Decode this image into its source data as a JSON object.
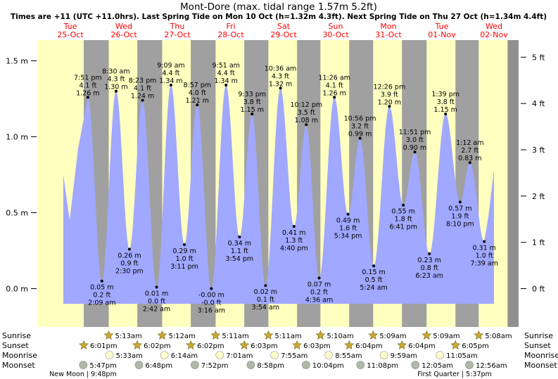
{
  "chart_data": {
    "type": "area",
    "title": "Mont-Dore (max. tidal range 1.57m 5.2ft)",
    "subtitle": "Times are +11 (UTC +11.0hrs). Last Spring Tide on Mon 10 Oct (h=1.32m 4.3ft). Next Spring Tide on Thu 27 Oct (h=1.34m 4.4ft)",
    "days": [
      {
        "dow": "Tue",
        "date": "25-Oct"
      },
      {
        "dow": "Wed",
        "date": "26-Oct"
      },
      {
        "dow": "Thu",
        "date": "27-Oct"
      },
      {
        "dow": "Fri",
        "date": "28-Oct"
      },
      {
        "dow": "Sat",
        "date": "29-Oct"
      },
      {
        "dow": "Sun",
        "date": "30-Oct"
      },
      {
        "dow": "Mon",
        "date": "31-Oct"
      },
      {
        "dow": "Tue",
        "date": "01-Nov"
      },
      {
        "dow": "Wed",
        "date": "02-Nov"
      }
    ],
    "y_axis_m": {
      "ylim": [
        -0.2,
        1.7
      ],
      "ticks": [
        0.0,
        0.5,
        1.0,
        1.5
      ],
      "labels": [
        "0.0 m",
        "0.5 m",
        "1.0 m",
        "1.5 m"
      ]
    },
    "y_axis_ft": {
      "ticks": [
        0,
        1,
        2,
        3,
        4,
        5
      ],
      "labels": [
        "0 ft",
        "1 ft",
        "2 ft",
        "3 ft",
        "4 ft",
        "5 ft"
      ]
    },
    "extremes": [
      {
        "type": "high",
        "day": 0,
        "time": "7:51 pm",
        "m": 1.26,
        "m_label": "1.26 m",
        "ft_label": "4.1 ft"
      },
      {
        "type": "low",
        "day": 1,
        "time": "2:09 am",
        "m": 0.05,
        "m_label": "0.05 m",
        "ft_label": "0.2 ft"
      },
      {
        "type": "high",
        "day": 1,
        "time": "8:30 am",
        "m": 1.3,
        "m_label": "1.30 m",
        "ft_label": "4.3 ft"
      },
      {
        "type": "low",
        "day": 1,
        "time": "2:30 pm",
        "m": 0.26,
        "m_label": "0.26 m",
        "ft_label": "0.9 ft"
      },
      {
        "type": "high",
        "day": 1,
        "time": "8:23 pm",
        "m": 1.24,
        "m_label": "1.24 m",
        "ft_label": "4.1 ft"
      },
      {
        "type": "low",
        "day": 2,
        "time": "2:42 am",
        "m": 0.01,
        "m_label": "0.01 m",
        "ft_label": "0.0 ft"
      },
      {
        "type": "high",
        "day": 2,
        "time": "9:09 am",
        "m": 1.34,
        "m_label": "1.34 m",
        "ft_label": "4.4 ft"
      },
      {
        "type": "low",
        "day": 2,
        "time": "3:11 pm",
        "m": 0.29,
        "m_label": "0.29 m",
        "ft_label": "1.0 ft"
      },
      {
        "type": "high",
        "day": 2,
        "time": "8:57 pm",
        "m": 1.21,
        "m_label": "1.21 m",
        "ft_label": "4.0 ft"
      },
      {
        "type": "low",
        "day": 3,
        "time": "3:16 am",
        "m": -0.0,
        "m_label": "-0.00 m",
        "ft_label": "-0.0 ft"
      },
      {
        "type": "high",
        "day": 3,
        "time": "9:51 am",
        "m": 1.34,
        "m_label": "1.34 m",
        "ft_label": "4.4 ft"
      },
      {
        "type": "low",
        "day": 3,
        "time": "3:54 pm",
        "m": 0.34,
        "m_label": "0.34 m",
        "ft_label": "1.1 ft"
      },
      {
        "type": "high",
        "day": 3,
        "time": "9:33 pm",
        "m": 1.15,
        "m_label": "1.15 m",
        "ft_label": "3.8 ft"
      },
      {
        "type": "low",
        "day": 4,
        "time": "3:54 am",
        "m": 0.02,
        "m_label": "0.02 m",
        "ft_label": "0.1 ft"
      },
      {
        "type": "high",
        "day": 4,
        "time": "10:36 am",
        "m": 1.32,
        "m_label": "1.32 m",
        "ft_label": "4.3 ft"
      },
      {
        "type": "low",
        "day": 4,
        "time": "4:40 pm",
        "m": 0.41,
        "m_label": "0.41 m",
        "ft_label": "1.3 ft"
      },
      {
        "type": "high",
        "day": 4,
        "time": "10:12 pm",
        "m": 1.08,
        "m_label": "1.08 m",
        "ft_label": "3.5 ft"
      },
      {
        "type": "low",
        "day": 5,
        "time": "4:36 am",
        "m": 0.07,
        "m_label": "0.07 m",
        "ft_label": "0.2 ft"
      },
      {
        "type": "high",
        "day": 5,
        "time": "11:26 am",
        "m": 1.26,
        "m_label": "1.26 m",
        "ft_label": "4.1 ft"
      },
      {
        "type": "low",
        "day": 5,
        "time": "5:34 pm",
        "m": 0.49,
        "m_label": "0.49 m",
        "ft_label": "1.6 ft"
      },
      {
        "type": "high",
        "day": 5,
        "time": "10:56 pm",
        "m": 0.99,
        "m_label": "0.99 m",
        "ft_label": "3.2 ft"
      },
      {
        "type": "low",
        "day": 6,
        "time": "5:24 am",
        "m": 0.15,
        "m_label": "0.15 m",
        "ft_label": "0.5 ft"
      },
      {
        "type": "high",
        "day": 6,
        "time": "12:26 pm",
        "m": 1.2,
        "m_label": "1.20 m",
        "ft_label": "3.9 ft"
      },
      {
        "type": "low",
        "day": 6,
        "time": "6:41 pm",
        "m": 0.55,
        "m_label": "0.55 m",
        "ft_label": "1.8 ft"
      },
      {
        "type": "high",
        "day": 6,
        "time": "11:51 pm",
        "m": 0.9,
        "m_label": "0.90 m",
        "ft_label": "3.0 ft"
      },
      {
        "type": "low",
        "day": 7,
        "time": "6:23 am",
        "m": 0.23,
        "m_label": "0.23 m",
        "ft_label": "0.8 ft"
      },
      {
        "type": "high",
        "day": 7,
        "time": "1:39 pm",
        "m": 1.15,
        "m_label": "1.15 m",
        "ft_label": "3.8 ft"
      },
      {
        "type": "low",
        "day": 7,
        "time": "8:10 pm",
        "m": 0.57,
        "m_label": "0.57 m",
        "ft_label": "1.9 ft"
      },
      {
        "type": "high",
        "day": 8,
        "time": "1:12 am",
        "m": 0.83,
        "m_label": "0.83 m",
        "ft_label": "2.7 ft"
      },
      {
        "type": "low",
        "day": 8,
        "time": "7:39 am",
        "m": 0.31,
        "m_label": "0.31 m",
        "ft_label": "1.0 ft"
      }
    ],
    "row_labels": [
      "Sunrise",
      "Sunset",
      "Moonrise",
      "Moonset"
    ],
    "sunrise": [
      {
        "day": 1,
        "time": "5:13am"
      },
      {
        "day": 2,
        "time": "5:12am"
      },
      {
        "day": 3,
        "time": "5:11am"
      },
      {
        "day": 4,
        "time": "5:11am"
      },
      {
        "day": 5,
        "time": "5:10am"
      },
      {
        "day": 6,
        "time": "5:09am"
      },
      {
        "day": 7,
        "time": "5:09am"
      },
      {
        "day": 8,
        "time": "5:08am"
      }
    ],
    "sunset": [
      {
        "day": 0,
        "time": "6:01pm"
      },
      {
        "day": 1,
        "time": "6:02pm"
      },
      {
        "day": 2,
        "time": "6:02pm"
      },
      {
        "day": 3,
        "time": "6:03pm"
      },
      {
        "day": 4,
        "time": "6:03pm"
      },
      {
        "day": 5,
        "time": "6:04pm"
      },
      {
        "day": 6,
        "time": "6:04pm"
      },
      {
        "day": 7,
        "time": "6:05pm"
      }
    ],
    "moonrise": [
      {
        "day": 1,
        "time": "5:33am"
      },
      {
        "day": 2,
        "time": "6:14am"
      },
      {
        "day": 3,
        "time": "7:01am"
      },
      {
        "day": 4,
        "time": "7:55am"
      },
      {
        "day": 5,
        "time": "8:55am"
      },
      {
        "day": 6,
        "time": "9:59am"
      },
      {
        "day": 7,
        "time": "11:05am"
      }
    ],
    "moonset": [
      {
        "day": 0,
        "time": "5:47pm"
      },
      {
        "day": 1,
        "time": "6:48pm"
      },
      {
        "day": 2,
        "time": "7:52pm"
      },
      {
        "day": 3,
        "time": "8:58pm"
      },
      {
        "day": 4,
        "time": "10:04pm"
      },
      {
        "day": 5,
        "time": "11:08pm"
      },
      {
        "day": 7,
        "time": "12:05am"
      },
      {
        "day": 8,
        "time": "12:56am"
      }
    ],
    "moon_phases": [
      {
        "day": 0,
        "text": "New Moon | 9:48pm"
      },
      {
        "day": 7,
        "text": "First Quarter | 5:37pm"
      }
    ],
    "colors": {
      "day": "#ffffc0",
      "night": "#a0a0a0",
      "water": "#a0a8ff",
      "date_label": "#ff0000",
      "sun_icon": "#c8a830",
      "moon_icon": "#ffffcc"
    }
  }
}
